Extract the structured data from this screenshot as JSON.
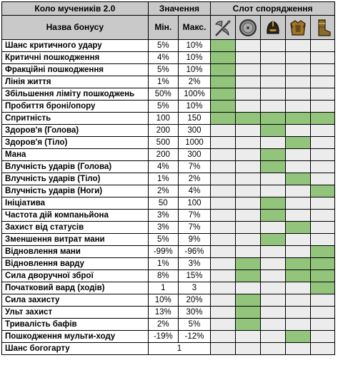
{
  "header": {
    "set_name": "Коло мучеників 2.0",
    "values_group": "Значення",
    "slots_group": "Слот спорядження",
    "bonus_name_col": "Назва бонусу",
    "min_col": "Мін.",
    "max_col": "Макс."
  },
  "slot_icons": [
    "axe-icon",
    "shield-icon",
    "helmet-icon",
    "chest-armor-icon",
    "boots-icon"
  ],
  "colors": {
    "header_bg": "#c9c9c9",
    "slot_active": "#92c47c",
    "slot_inactive": "#ececec",
    "border": "#000000"
  },
  "rows": [
    {
      "name": "Шанс критичного удару",
      "min": "5%",
      "max": "10%",
      "slots": [
        1,
        0,
        0,
        0,
        0
      ]
    },
    {
      "name": "Критичні пошкодження",
      "min": "4%",
      "max": "10%",
      "slots": [
        1,
        0,
        0,
        0,
        0
      ]
    },
    {
      "name": "Фракційні пошкодження",
      "min": "5%",
      "max": "10%",
      "slots": [
        1,
        0,
        0,
        0,
        0
      ]
    },
    {
      "name": "Лінія життя",
      "min": "1%",
      "max": "2%",
      "slots": [
        1,
        0,
        0,
        0,
        0
      ]
    },
    {
      "name": "Збільшення ліміту пошкоджень",
      "min": "50%",
      "max": "100%",
      "slots": [
        1,
        0,
        0,
        0,
        0
      ]
    },
    {
      "name": "Пробиття броні/опору",
      "min": "5%",
      "max": "10%",
      "slots": [
        1,
        0,
        0,
        0,
        0
      ]
    },
    {
      "name": "Спритність",
      "min": "100",
      "max": "150",
      "slots": [
        1,
        1,
        1,
        1,
        1
      ]
    },
    {
      "name": "Здоров'я (Голова)",
      "min": "200",
      "max": "300",
      "slots": [
        0,
        0,
        1,
        0,
        0
      ]
    },
    {
      "name": "Здоров'я (Тіло)",
      "min": "500",
      "max": "1000",
      "slots": [
        0,
        0,
        0,
        1,
        0
      ]
    },
    {
      "name": "Мана",
      "min": "200",
      "max": "300",
      "slots": [
        0,
        0,
        1,
        0,
        0
      ]
    },
    {
      "name": "Влучність ударів (Голова)",
      "min": "4%",
      "max": "7%",
      "slots": [
        0,
        0,
        1,
        0,
        0
      ]
    },
    {
      "name": "Влучність ударів (Тіло)",
      "min": "1%",
      "max": "2%",
      "slots": [
        0,
        0,
        0,
        1,
        0
      ]
    },
    {
      "name": "Влучність ударів (Ноги)",
      "min": "2%",
      "max": "4%",
      "slots": [
        0,
        0,
        0,
        0,
        1
      ]
    },
    {
      "name": "Ініціатива",
      "min": "50",
      "max": "100",
      "slots": [
        0,
        0,
        1,
        0,
        0
      ]
    },
    {
      "name": "Частота дій компаньйона",
      "min": "3%",
      "max": "7%",
      "slots": [
        0,
        0,
        1,
        0,
        0
      ]
    },
    {
      "name": "Захист від статусів",
      "min": "3%",
      "max": "7%",
      "slots": [
        0,
        0,
        0,
        1,
        0
      ]
    },
    {
      "name": "Зменшення витрат мани",
      "min": "5%",
      "max": "9%",
      "slots": [
        0,
        0,
        1,
        0,
        0
      ]
    },
    {
      "name": "Відновлення мани",
      "min": "-99%",
      "max": "-96%",
      "slots": [
        0,
        0,
        0,
        0,
        1
      ]
    },
    {
      "name": "Відновлення варду",
      "min": "1%",
      "max": "3%",
      "slots": [
        0,
        1,
        0,
        1,
        1
      ]
    },
    {
      "name": "Сила дворучної зброї",
      "min": "8%",
      "max": "15%",
      "slots": [
        0,
        1,
        0,
        1,
        1
      ]
    },
    {
      "name": "Початковий вард (ходів)",
      "min": "1",
      "max": "3",
      "slots": [
        0,
        0,
        0,
        0,
        1
      ]
    },
    {
      "name": "Сила захисту",
      "min": "10%",
      "max": "20%",
      "slots": [
        0,
        1,
        0,
        0,
        0
      ]
    },
    {
      "name": "Ульт захист",
      "min": "13%",
      "max": "30%",
      "slots": [
        0,
        1,
        0,
        0,
        0
      ]
    },
    {
      "name": "Тривалість бафів",
      "min": "2%",
      "max": "5%",
      "slots": [
        0,
        1,
        0,
        0,
        0
      ]
    },
    {
      "name": "Пошкодження мульти-ходу",
      "min": "-19%",
      "max": "-12%",
      "slots": [
        0,
        0,
        0,
        1,
        0
      ]
    },
    {
      "name": "Шанс богогарту",
      "value": "1",
      "slots": [
        0,
        0,
        0,
        0,
        0
      ]
    }
  ]
}
